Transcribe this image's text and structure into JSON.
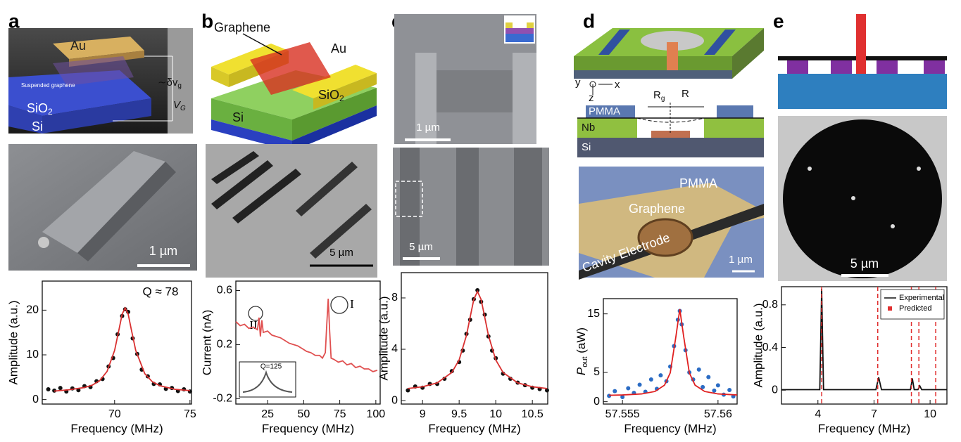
{
  "panels": [
    {
      "label": "a",
      "texts": [
        "Au",
        "Suspended graphene",
        {
          "base": "∼δv",
          "sub": "g"
        },
        {
          "base": "V",
          "sub": "G"
        },
        {
          "base": "SiO",
          "sub": "2"
        },
        "Si",
        "1 µm"
      ]
    },
    {
      "label": "b",
      "texts": [
        "Graphene",
        "Au",
        {
          "base": "SiO",
          "sub": "2"
        },
        "Si",
        "5 µm"
      ]
    },
    {
      "label": "c",
      "texts": [
        "1 µm",
        "5 µm"
      ]
    },
    {
      "label": "d",
      "texts": [
        "y",
        "x",
        "z",
        {
          "base": "R",
          "sub": "g"
        },
        "R",
        "PMMA",
        "Nb",
        "Si",
        "PMMA",
        "Graphene",
        "Cavity Electrode",
        "1 µm"
      ]
    },
    {
      "label": "e",
      "texts": [
        "5 µm"
      ]
    }
  ],
  "chart_data": [
    {
      "type": "line",
      "xlabel": "Frequency (MHz)",
      "ylabel": "Amplitude (a.u.)",
      "annotations": [
        "Q ≈ 78"
      ],
      "xlim": [
        65.2,
        75.1
      ],
      "xticks": [
        70,
        75
      ],
      "ylim": [
        -1,
        26.5
      ],
      "yticks": [
        0,
        10,
        20
      ],
      "series": [
        {
          "style": "markers",
          "color": "#111111",
          "x": [
            65.6,
            66,
            66.4,
            66.8,
            67.2,
            67.6,
            68,
            68.4,
            68.8,
            69.2,
            69.6,
            69.9,
            70.2,
            70.5,
            70.7,
            70.9,
            71.2,
            71.5,
            71.8,
            72.2,
            72.6,
            73,
            73.4,
            73.8,
            74.2,
            74.6,
            75
          ],
          "values": [
            2.3,
            2.0,
            2.6,
            1.8,
            2.5,
            2.1,
            3.0,
            2.8,
            4.1,
            4.6,
            7.4,
            9.3,
            14.6,
            18.7,
            20.2,
            19.6,
            13.7,
            10.2,
            6.7,
            5.2,
            3.5,
            3.4,
            2.4,
            2.6,
            1.9,
            2.3,
            1.8
          ]
        },
        {
          "style": "line",
          "color": "#d93030",
          "x": [
            66,
            67,
            68,
            68.5,
            69,
            69.5,
            70,
            70.3,
            70.5,
            70.7,
            70.9,
            71.1,
            71.4,
            72,
            72.5,
            73,
            74,
            75
          ],
          "values": [
            1.9,
            2.2,
            2.7,
            3.2,
            4.2,
            6.3,
            11.0,
            15.8,
            19.1,
            20.5,
            19.1,
            15.8,
            11.0,
            5.8,
            4.0,
            3.1,
            2.3,
            2.0
          ]
        }
      ]
    },
    {
      "type": "line",
      "xlabel": "Frequency (MHz)",
      "ylabel": "Current (nA)",
      "annotations": [
        "II",
        "I",
        "Q=125"
      ],
      "xlim": [
        3,
        103
      ],
      "xticks": [
        25,
        50,
        75,
        100
      ],
      "ylim": [
        -0.24,
        0.67
      ],
      "yticks": [
        -0.2,
        0.2,
        0.6
      ],
      "series": [
        {
          "style": "line",
          "color": "#e05050",
          "x": [
            3,
            6,
            9,
            12,
            15,
            18,
            19,
            20,
            21,
            22,
            25,
            28,
            31,
            34,
            37,
            40,
            43,
            46,
            49,
            52,
            55,
            58,
            61,
            63,
            65,
            66,
            67,
            68,
            69,
            71,
            74,
            77,
            80,
            83,
            86,
            89,
            92,
            95,
            98,
            101
          ],
          "values": [
            0.37,
            0.34,
            0.35,
            0.32,
            0.33,
            0.31,
            0.4,
            0.26,
            0.38,
            0.29,
            0.3,
            0.27,
            0.26,
            0.25,
            0.23,
            0.21,
            0.2,
            0.19,
            0.17,
            0.15,
            0.14,
            0.12,
            0.12,
            0.1,
            0.14,
            0.35,
            0.54,
            0.3,
            0.1,
            0.09,
            0.07,
            0.08,
            0.05,
            0.06,
            0.03,
            0.04,
            0.02,
            0.02,
            0.0,
            0.01
          ]
        }
      ]
    },
    {
      "type": "line",
      "xlabel": "Frequency (MHz)",
      "ylabel": "Amplitude (a.u.)",
      "xlim": [
        8.71,
        10.71
      ],
      "xticks": [
        9,
        9.5,
        10,
        10.5
      ],
      "ylim": [
        -0.27,
        9.97
      ],
      "yticks": [
        0,
        4,
        8
      ],
      "series": [
        {
          "style": "markers",
          "color": "#111111",
          "x": [
            8.8,
            8.9,
            9.0,
            9.1,
            9.2,
            9.3,
            9.4,
            9.5,
            9.55,
            9.6,
            9.65,
            9.7,
            9.75,
            9.8,
            9.85,
            9.9,
            9.95,
            10.0,
            10.1,
            10.2,
            10.3,
            10.4,
            10.5,
            10.6,
            10.7
          ],
          "values": [
            0.8,
            1.1,
            1.0,
            1.3,
            1.3,
            1.7,
            2.3,
            3.0,
            3.9,
            5.2,
            6.3,
            7.9,
            8.6,
            7.7,
            6.7,
            5.0,
            3.9,
            3.3,
            2.1,
            1.7,
            1.4,
            1.2,
            1.0,
            0.9,
            0.8
          ]
        },
        {
          "style": "line",
          "color": "#d93030",
          "x": [
            8.8,
            9.0,
            9.2,
            9.4,
            9.5,
            9.6,
            9.65,
            9.7,
            9.75,
            9.8,
            9.85,
            9.9,
            10.0,
            10.1,
            10.3,
            10.5,
            10.7
          ],
          "values": [
            0.94,
            1.08,
            1.38,
            2.19,
            3.17,
            5.08,
            6.49,
            7.88,
            8.5,
            7.88,
            6.49,
            5.08,
            3.17,
            2.19,
            1.38,
            1.08,
            0.94
          ]
        }
      ]
    },
    {
      "type": "line",
      "xlabel": "Frequency (MHz)",
      "ylabel": {
        "base": "P",
        "sub": "out",
        "rest": " (aW)"
      },
      "xlim": [
        57.554,
        57.561
      ],
      "xticks": [
        57.555,
        57.56
      ],
      "ylim": [
        -0.4,
        17.6
      ],
      "yticks": [
        0,
        5,
        15
      ],
      "series": [
        {
          "style": "markers",
          "color": "#2b6cc4",
          "x": [
            57.5543,
            57.5546,
            57.555,
            57.5553,
            57.5556,
            57.5559,
            57.5562,
            57.5565,
            57.5568,
            57.557,
            57.5573,
            57.5575,
            57.5577,
            57.5579,
            57.558,
            57.5581,
            57.5583,
            57.5585,
            57.5587,
            57.559,
            57.5592,
            57.5595,
            57.5598,
            57.56,
            57.5603,
            57.5606,
            57.5608
          ],
          "values": [
            1.0,
            1.8,
            0.8,
            2.3,
            1.5,
            2.9,
            1.7,
            3.8,
            2.2,
            4.5,
            3.5,
            6.0,
            9.5,
            14.0,
            15.5,
            13.2,
            8.8,
            5.0,
            3.8,
            5.5,
            2.5,
            4.2,
            1.9,
            2.8,
            1.2,
            2.0,
            0.9
          ]
        },
        {
          "style": "line",
          "color": "#e02020",
          "x": [
            57.5543,
            57.555,
            57.556,
            57.5567,
            57.5572,
            57.5575,
            57.5578,
            57.558,
            57.5582,
            57.5585,
            57.5588,
            57.5593,
            57.56,
            57.561
          ],
          "values": [
            1.1,
            1.15,
            1.33,
            1.75,
            2.83,
            4.92,
            11.2,
            15.8,
            11.2,
            4.92,
            2.83,
            1.75,
            1.33,
            1.15
          ]
        }
      ]
    },
    {
      "type": "line",
      "xlabel": "Frequency (MHz)",
      "ylabel": "Amplitude (a.u.)",
      "legend": "upper right",
      "xlim": [
        2.05,
        10.9
      ],
      "xticks": [
        4,
        7,
        10
      ],
      "ylim": [
        -0.13,
        0.97
      ],
      "yticks": [
        0,
        0.4,
        0.8
      ],
      "series": [
        {
          "name": "Experimental",
          "style": "line",
          "color": "#111111",
          "x": [
            2.05,
            4.1,
            4.2,
            4.3,
            7.1,
            7.25,
            7.4,
            8.95,
            9.05,
            9.15,
            9.35,
            9.45,
            9.55,
            10.9
          ],
          "values": [
            0.005,
            0.005,
            0.95,
            0.005,
            0.005,
            0.12,
            0.005,
            0.005,
            0.11,
            0.005,
            0.005,
            0.04,
            0.005,
            0.005
          ]
        },
        {
          "name": "Predicted",
          "style": "vlines",
          "color": "#e03030",
          "x": [
            4.2,
            7.2,
            9.0,
            9.4,
            10.3
          ]
        }
      ]
    }
  ]
}
